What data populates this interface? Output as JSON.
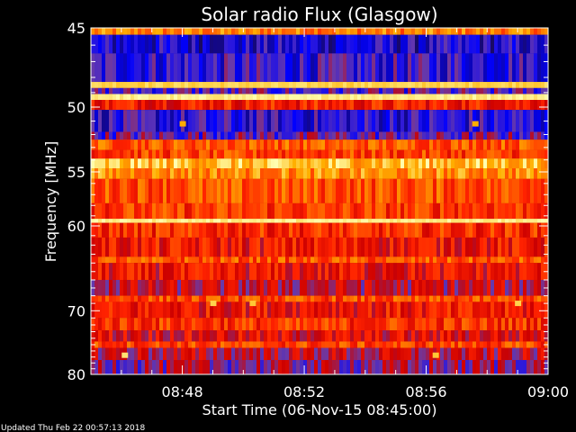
{
  "chart_data": {
    "type": "heatmap",
    "title": "Solar radio Flux (Glasgow)",
    "xlabel": "Start Time (06-Nov-15 08:45:00)",
    "ylabel": "Frequency [MHz]",
    "footer": "Updated Thu Feb 22 00:57:13 2018",
    "x_range": [
      "08:45",
      "09:00"
    ],
    "x_ticks": [
      "08:48",
      "08:52",
      "08:56",
      "09:00"
    ],
    "x_tick_values_min": [
      3,
      7,
      11,
      15
    ],
    "x_minor_step_min": 1,
    "y_range": [
      45,
      80
    ],
    "y_ticks": [
      45,
      50,
      55,
      60,
      70,
      80
    ],
    "y_scale": "reciprocal",
    "colormap": [
      "#1a0a5e",
      "#0000ff",
      "#6a3aa8",
      "#cc0000",
      "#ff2200",
      "#ff6a00",
      "#ffb000",
      "#ffffb0"
    ],
    "bands": [
      {
        "f0": 45.0,
        "f1": 45.4,
        "level": 0.75
      },
      {
        "f0": 45.4,
        "f1": 46.5,
        "level": 0.14
      },
      {
        "f0": 46.5,
        "f1": 48.3,
        "level": 0.2
      },
      {
        "f0": 48.3,
        "f1": 48.7,
        "level": 0.92
      },
      {
        "f0": 48.7,
        "f1": 49.1,
        "level": 0.25
      },
      {
        "f0": 49.1,
        "f1": 49.5,
        "level": 0.97
      },
      {
        "f0": 49.5,
        "f1": 50.2,
        "level": 0.55
      },
      {
        "f0": 50.2,
        "f1": 51.8,
        "level": 0.18
      },
      {
        "f0": 51.8,
        "f1": 52.4,
        "level": 0.28
      },
      {
        "f0": 52.4,
        "f1": 53.2,
        "level": 0.68
      },
      {
        "f0": 53.2,
        "f1": 53.9,
        "level": 0.62
      },
      {
        "f0": 53.9,
        "f1": 54.7,
        "level": 0.88
      },
      {
        "f0": 54.7,
        "f1": 55.6,
        "level": 0.78
      },
      {
        "f0": 55.6,
        "f1": 57.8,
        "level": 0.66
      },
      {
        "f0": 57.8,
        "f1": 59.3,
        "level": 0.61
      },
      {
        "f0": 59.3,
        "f1": 59.7,
        "level": 0.97
      },
      {
        "f0": 59.7,
        "f1": 61.2,
        "level": 0.58
      },
      {
        "f0": 61.2,
        "f1": 63.3,
        "level": 0.52
      },
      {
        "f0": 63.3,
        "f1": 64.0,
        "level": 0.66
      },
      {
        "f0": 64.0,
        "f1": 66.0,
        "level": 0.5
      },
      {
        "f0": 66.0,
        "f1": 68.0,
        "level": 0.4
      },
      {
        "f0": 68.0,
        "f1": 68.8,
        "level": 0.64
      },
      {
        "f0": 68.8,
        "f1": 71.0,
        "level": 0.52
      },
      {
        "f0": 71.0,
        "f1": 72.8,
        "level": 0.6
      },
      {
        "f0": 72.8,
        "f1": 74.5,
        "level": 0.47
      },
      {
        "f0": 74.5,
        "f1": 75.5,
        "level": 0.63
      },
      {
        "f0": 75.5,
        "f1": 77.5,
        "level": 0.4
      },
      {
        "f0": 77.5,
        "f1": 80.0,
        "level": 0.33
      }
    ],
    "bursts": [
      {
        "t_min": 3.0,
        "f": 51.2,
        "level": 0.85
      },
      {
        "t_min": 12.6,
        "f": 51.2,
        "level": 0.85
      },
      {
        "t_min": 1.1,
        "f": 76.7,
        "level": 0.95
      },
      {
        "t_min": 11.3,
        "f": 76.7,
        "level": 0.9
      },
      {
        "t_min": 4.0,
        "f": 69.0,
        "level": 0.92
      },
      {
        "t_min": 5.3,
        "f": 69.0,
        "level": 0.9
      },
      {
        "t_min": 14.0,
        "f": 69.0,
        "level": 0.92
      }
    ]
  }
}
